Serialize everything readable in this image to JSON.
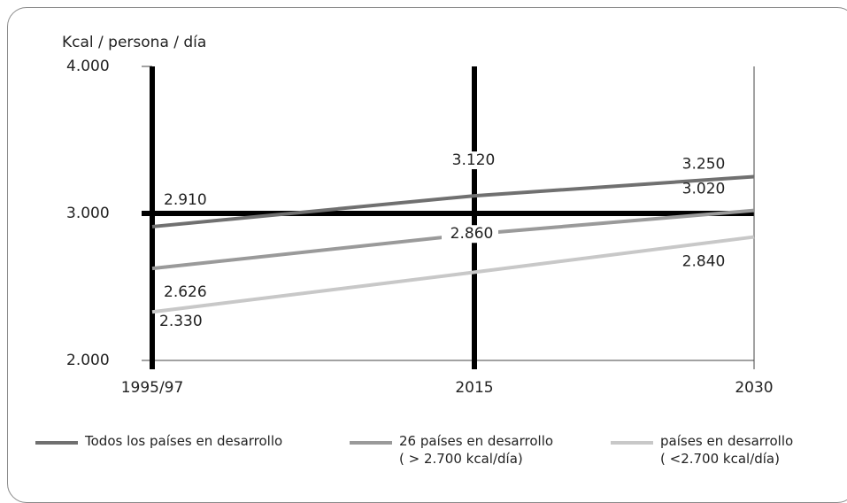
{
  "chart_data": {
    "type": "line",
    "ylabel": "Kcal / persona / día",
    "categories": [
      "1995/97",
      "2015",
      "2030"
    ],
    "ylim": [
      2000,
      4000
    ],
    "yticks": [
      {
        "value": 2000,
        "label": "2.000"
      },
      {
        "value": 3000,
        "label": "3.000"
      },
      {
        "value": 4000,
        "label": "4.000"
      }
    ],
    "series": [
      {
        "name": "Todos los países en desarrollo",
        "color": "#707070",
        "values": [
          2910,
          3120,
          3250
        ],
        "value_labels": [
          "2.910",
          "3.120",
          "3.250"
        ]
      },
      {
        "name": "26 países en desarrollo\n( > 2.700 kcal/día)",
        "color": "#9a9a9a",
        "values": [
          2626,
          2860,
          3020
        ],
        "value_labels": [
          "2.626",
          "2.860",
          "3.020"
        ]
      },
      {
        "name": "países en desarrollo\n( <2.700 kcal/día)",
        "color": "#c8c8c8",
        "values": [
          2330,
          2600,
          2840
        ],
        "value_labels": [
          "2.330",
          null,
          "2.840"
        ]
      }
    ]
  }
}
